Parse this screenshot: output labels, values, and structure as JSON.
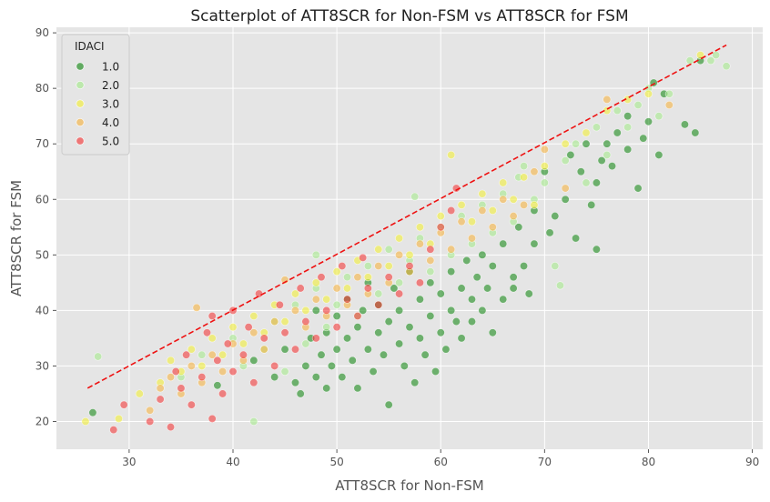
{
  "chart_data": {
    "type": "scatter",
    "title": "Scatterplot of ATT8SCR for Non-FSM vs ATT8SCR for FSM",
    "xlabel": "ATT8SCR for Non-FSM",
    "ylabel": "ATT8SCR for FSM",
    "xlim": [
      23,
      91
    ],
    "ylim": [
      15,
      91
    ],
    "xticks": [
      30,
      40,
      50,
      60,
      70,
      80,
      90
    ],
    "yticks": [
      20,
      30,
      40,
      50,
      60,
      70,
      80,
      90
    ],
    "grid": true,
    "legend": {
      "title": "IDACI",
      "position": "top-left",
      "entries": [
        "1.0",
        "2.0",
        "3.0",
        "4.0",
        "5.0"
      ]
    },
    "series": [
      {
        "name": "1.0",
        "color": "#1a8a1a",
        "points": [
          [
            26.5,
            21.6
          ],
          [
            38.5,
            26.5
          ],
          [
            42,
            31
          ],
          [
            44,
            28
          ],
          [
            45,
            33
          ],
          [
            46,
            27
          ],
          [
            46.5,
            25
          ],
          [
            47,
            30
          ],
          [
            47.5,
            35
          ],
          [
            48,
            28
          ],
          [
            48,
            40
          ],
          [
            48.5,
            32
          ],
          [
            49,
            26
          ],
          [
            49,
            36
          ],
          [
            49.5,
            30
          ],
          [
            50,
            33
          ],
          [
            50,
            39
          ],
          [
            50.5,
            28
          ],
          [
            51,
            35
          ],
          [
            51,
            42
          ],
          [
            51.5,
            31
          ],
          [
            52,
            37
          ],
          [
            52,
            26
          ],
          [
            52.5,
            40
          ],
          [
            53,
            33
          ],
          [
            53,
            45
          ],
          [
            53.5,
            29
          ],
          [
            54,
            36
          ],
          [
            54,
            41
          ],
          [
            54.5,
            32
          ],
          [
            55,
            38
          ],
          [
            55,
            23
          ],
          [
            55.5,
            44
          ],
          [
            56,
            34
          ],
          [
            56,
            40
          ],
          [
            56.5,
            30
          ],
          [
            57,
            37
          ],
          [
            57,
            47
          ],
          [
            57.5,
            27
          ],
          [
            58,
            35
          ],
          [
            58,
            42
          ],
          [
            58.5,
            32
          ],
          [
            59,
            39
          ],
          [
            59,
            45
          ],
          [
            59.5,
            29
          ],
          [
            60,
            36
          ],
          [
            60,
            43
          ],
          [
            60.5,
            33
          ],
          [
            61,
            40
          ],
          [
            61,
            47
          ],
          [
            61.5,
            38
          ],
          [
            62,
            44
          ],
          [
            62,
            35
          ],
          [
            62.5,
            49
          ],
          [
            63,
            42
          ],
          [
            63,
            38
          ],
          [
            63.5,
            46
          ],
          [
            64,
            40
          ],
          [
            64,
            50
          ],
          [
            64.5,
            44
          ],
          [
            65,
            48
          ],
          [
            65,
            36
          ],
          [
            66,
            42
          ],
          [
            66,
            52
          ],
          [
            67,
            46
          ],
          [
            67,
            44
          ],
          [
            67.5,
            55
          ],
          [
            68,
            48
          ],
          [
            68.5,
            43
          ],
          [
            69,
            58
          ],
          [
            69,
            52
          ],
          [
            70,
            65
          ],
          [
            70.5,
            54
          ],
          [
            71,
            57
          ],
          [
            72,
            60
          ],
          [
            72.5,
            68
          ],
          [
            73,
            53
          ],
          [
            73.5,
            65
          ],
          [
            74,
            70
          ],
          [
            74.5,
            59
          ],
          [
            75,
            51
          ],
          [
            75,
            63
          ],
          [
            75.5,
            67
          ],
          [
            76,
            70
          ],
          [
            76.5,
            66
          ],
          [
            77,
            72
          ],
          [
            78,
            75
          ],
          [
            78,
            69
          ],
          [
            79,
            62
          ],
          [
            79.5,
            71
          ],
          [
            80,
            74
          ],
          [
            80.5,
            81
          ],
          [
            81,
            68
          ],
          [
            81.5,
            79
          ],
          [
            83.5,
            73.5
          ],
          [
            84.5,
            72
          ],
          [
            85,
            85
          ]
        ]
      },
      {
        "name": "2.0",
        "color": "#a6ea8e",
        "points": [
          [
            27,
            31.7
          ],
          [
            35,
            28
          ],
          [
            37,
            32
          ],
          [
            40,
            35
          ],
          [
            41,
            30
          ],
          [
            42,
            20
          ],
          [
            43,
            33
          ],
          [
            44,
            38
          ],
          [
            45,
            29
          ],
          [
            46,
            41
          ],
          [
            47,
            34
          ],
          [
            48,
            44
          ],
          [
            48,
            50
          ],
          [
            49,
            37
          ],
          [
            50,
            41
          ],
          [
            51,
            46
          ],
          [
            52,
            39
          ],
          [
            53,
            48
          ],
          [
            54,
            43
          ],
          [
            55,
            51
          ],
          [
            56,
            45
          ],
          [
            57,
            49
          ],
          [
            57.5,
            60.5
          ],
          [
            58,
            53
          ],
          [
            59,
            47
          ],
          [
            60,
            55
          ],
          [
            61,
            50
          ],
          [
            62,
            57
          ],
          [
            63,
            52
          ],
          [
            64,
            59
          ],
          [
            65,
            54
          ],
          [
            66,
            61
          ],
          [
            67,
            56
          ],
          [
            67.5,
            64
          ],
          [
            68,
            66
          ],
          [
            69,
            60
          ],
          [
            70,
            63
          ],
          [
            71,
            48
          ],
          [
            71.5,
            44.5
          ],
          [
            72,
            67
          ],
          [
            73,
            70
          ],
          [
            74,
            63
          ],
          [
            75,
            73
          ],
          [
            76,
            68
          ],
          [
            77,
            76
          ],
          [
            78,
            73
          ],
          [
            79,
            77
          ],
          [
            80,
            80
          ],
          [
            81,
            75
          ],
          [
            82,
            79
          ],
          [
            84,
            85
          ],
          [
            86,
            85
          ],
          [
            86.5,
            86
          ],
          [
            87.5,
            84
          ]
        ]
      },
      {
        "name": "3.0",
        "color": "#f2ee3a",
        "points": [
          [
            25.8,
            20
          ],
          [
            29,
            20.5
          ],
          [
            31,
            25
          ],
          [
            33,
            27
          ],
          [
            34,
            31
          ],
          [
            35,
            29
          ],
          [
            36,
            33
          ],
          [
            37,
            30
          ],
          [
            38,
            35
          ],
          [
            39,
            32
          ],
          [
            40,
            37
          ],
          [
            41,
            34
          ],
          [
            42,
            39
          ],
          [
            43,
            36
          ],
          [
            44,
            41
          ],
          [
            45,
            38
          ],
          [
            46,
            43
          ],
          [
            47,
            40
          ],
          [
            48,
            45
          ],
          [
            49,
            42
          ],
          [
            50,
            47
          ],
          [
            51,
            44
          ],
          [
            52,
            49
          ],
          [
            53,
            46
          ],
          [
            54,
            51
          ],
          [
            55,
            48
          ],
          [
            56,
            53
          ],
          [
            57,
            50
          ],
          [
            58,
            55
          ],
          [
            59,
            52
          ],
          [
            60,
            57
          ],
          [
            61,
            68
          ],
          [
            62,
            59
          ],
          [
            63,
            56
          ],
          [
            64,
            61
          ],
          [
            65,
            58
          ],
          [
            66,
            63
          ],
          [
            67,
            60
          ],
          [
            68,
            64
          ],
          [
            69,
            59
          ],
          [
            70,
            66
          ],
          [
            72,
            70
          ],
          [
            74,
            72
          ],
          [
            76,
            76
          ],
          [
            78,
            78
          ],
          [
            80,
            79
          ],
          [
            85,
            86
          ]
        ]
      },
      {
        "name": "4.0",
        "color": "#f5b445",
        "points": [
          [
            32,
            22
          ],
          [
            33,
            26
          ],
          [
            34,
            28
          ],
          [
            35,
            25
          ],
          [
            36,
            30
          ],
          [
            36.5,
            40.5
          ],
          [
            37,
            27
          ],
          [
            38,
            32
          ],
          [
            39,
            29
          ],
          [
            40,
            34
          ],
          [
            41,
            31
          ],
          [
            42,
            36
          ],
          [
            43,
            33
          ],
          [
            44,
            38
          ],
          [
            45,
            45.5
          ],
          [
            46,
            40
          ],
          [
            47,
            37
          ],
          [
            48,
            42
          ],
          [
            49,
            39
          ],
          [
            50,
            44
          ],
          [
            51,
            41
          ],
          [
            52,
            46
          ],
          [
            53,
            43
          ],
          [
            54,
            48
          ],
          [
            55,
            45
          ],
          [
            56,
            50
          ],
          [
            57,
            47
          ],
          [
            58,
            52
          ],
          [
            59,
            49
          ],
          [
            60,
            54
          ],
          [
            61,
            51
          ],
          [
            62,
            56
          ],
          [
            63,
            53
          ],
          [
            64,
            58
          ],
          [
            65,
            55
          ],
          [
            66,
            60
          ],
          [
            67,
            57
          ],
          [
            68,
            59
          ],
          [
            69,
            65
          ],
          [
            70,
            69
          ],
          [
            72,
            62
          ],
          [
            76,
            78
          ],
          [
            82,
            77
          ]
        ]
      },
      {
        "name": "5.0",
        "color": "#f23a3a",
        "points": [
          [
            28.5,
            18.5
          ],
          [
            29.5,
            23
          ],
          [
            32,
            20
          ],
          [
            33,
            24
          ],
          [
            34,
            19
          ],
          [
            34.5,
            29
          ],
          [
            35,
            26
          ],
          [
            35.5,
            32
          ],
          [
            36,
            23
          ],
          [
            37,
            28
          ],
          [
            37.5,
            36
          ],
          [
            38,
            20.5
          ],
          [
            38,
            39
          ],
          [
            38.5,
            31
          ],
          [
            39,
            25
          ],
          [
            39.5,
            34
          ],
          [
            40,
            29
          ],
          [
            40,
            40
          ],
          [
            41,
            32
          ],
          [
            41.5,
            37
          ],
          [
            42,
            27
          ],
          [
            42.5,
            43
          ],
          [
            43,
            35
          ],
          [
            44,
            30
          ],
          [
            44.5,
            41
          ],
          [
            45,
            36
          ],
          [
            46,
            33
          ],
          [
            46.5,
            44
          ],
          [
            47,
            38
          ],
          [
            48,
            35
          ],
          [
            48.5,
            46
          ],
          [
            49,
            40
          ],
          [
            50,
            37
          ],
          [
            50.5,
            48
          ],
          [
            51,
            42
          ],
          [
            52,
            39
          ],
          [
            52.5,
            49.5
          ],
          [
            53,
            44
          ],
          [
            54,
            41
          ],
          [
            55,
            46
          ],
          [
            56,
            43
          ],
          [
            57,
            48
          ],
          [
            58,
            45
          ],
          [
            59,
            51
          ],
          [
            60,
            55
          ],
          [
            61,
            58
          ],
          [
            61.5,
            62
          ]
        ]
      }
    ],
    "reference_line": {
      "style": "dashed",
      "color": "#ee1111",
      "x": [
        26,
        87.5
      ],
      "y": [
        26,
        87.8
      ]
    }
  }
}
